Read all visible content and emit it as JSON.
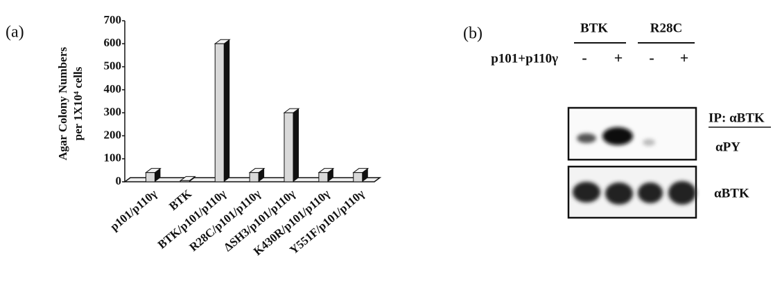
{
  "panel_a": {
    "label": "(a)"
  },
  "chart_data": {
    "type": "bar3d",
    "y_label": [
      "Agar Colony Numbers",
      "per 1X10⁴ cells"
    ],
    "categories": [
      "p101/p110γ",
      "BTK",
      "BTK/p101/p110γ",
      "R28C/p101/p110γ",
      "ΔSH3/p101/p110γ",
      "K430R/p101/p110γ",
      "Y551F/p101/p110γ"
    ],
    "values": [
      40,
      5,
      600,
      40,
      300,
      40,
      40
    ],
    "color": "#d9d9d9",
    "ylim": [
      0,
      700
    ],
    "yticks": [
      0,
      100,
      200,
      300,
      400,
      500,
      600,
      700
    ],
    "grid": false
  },
  "panel_b": {
    "label": "(b)",
    "groups": [
      "BTK",
      "R28C"
    ],
    "row_label": "p101+p110γ",
    "lanes": [
      "-",
      "+",
      "-",
      "+"
    ],
    "blot_labels": [
      "IP: αBTK",
      "αPY",
      "αBTK"
    ]
  }
}
